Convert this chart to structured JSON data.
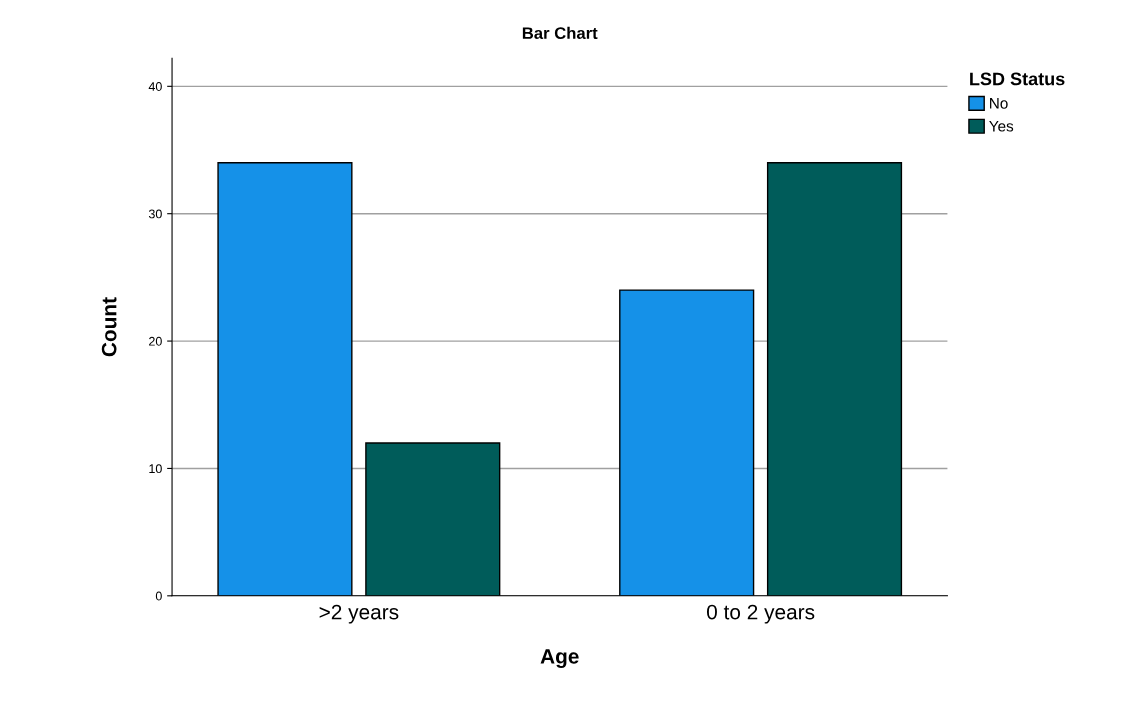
{
  "chart_data": {
    "type": "bar",
    "title": "Bar Chart",
    "xlabel": "Age",
    "ylabel": "Count",
    "legend_title": "LSD Status",
    "categories": [
      ">2 years",
      "0 to 2 years"
    ],
    "series": [
      {
        "name": "No",
        "color": "#1591e8",
        "values": [
          34,
          24
        ]
      },
      {
        "name": "Yes",
        "color": "#005c5a",
        "values": [
          12,
          34
        ]
      }
    ],
    "ylim": [
      0,
      42.2
    ],
    "yticks": [
      0,
      10,
      20,
      30,
      40
    ],
    "grid": "y",
    "legend": "top right"
  }
}
